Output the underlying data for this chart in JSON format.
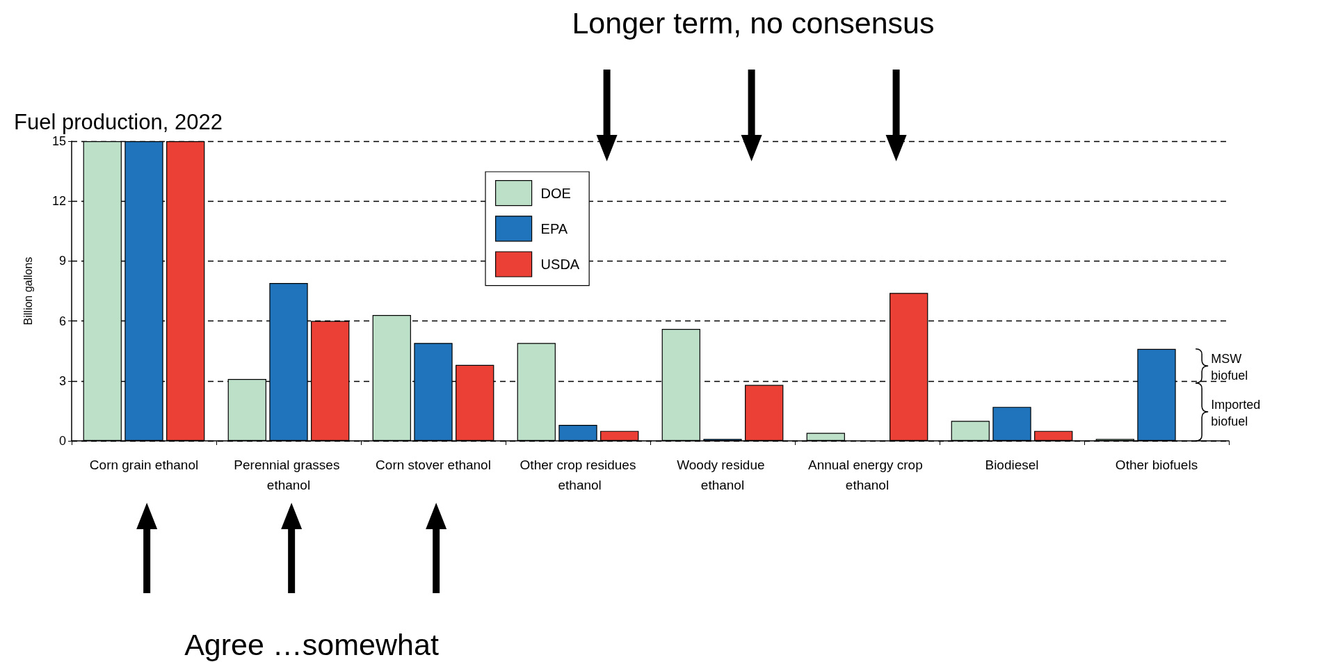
{
  "chart_data": {
    "type": "bar",
    "title": "Fuel production, 2022",
    "ylabel": "Billion gallons",
    "categories": [
      "Corn grain ethanol",
      "Perennial grasses ethanol",
      "Corn stover ethanol",
      "Other crop residues ethanol",
      "Woody residue ethanol",
      "Annual energy crop ethanol",
      "Biodiesel",
      "Other biofuels"
    ],
    "series": [
      {
        "name": "DOE",
        "color": "#bde0c8",
        "values": [
          15,
          3.1,
          6.3,
          4.9,
          5.6,
          0.4,
          1.0,
          0.1
        ]
      },
      {
        "name": "EPA",
        "color": "#1f74bb",
        "values": [
          15,
          7.9,
          4.9,
          0.8,
          0.1,
          null,
          1.7,
          4.6
        ]
      },
      {
        "name": "USDA",
        "color": "#ea4035",
        "values": [
          15,
          6.0,
          3.8,
          0.5,
          2.8,
          7.4,
          0.5,
          null
        ]
      }
    ],
    "ylim": [
      0,
      15
    ],
    "yticks": [
      0,
      3,
      6,
      9,
      12,
      15
    ],
    "grid": "y",
    "legend": "top",
    "annotations": [
      "Longer term, no consensus",
      "Agree …somewhat",
      "MSW biofuel",
      "Imported biofuel"
    ]
  }
}
